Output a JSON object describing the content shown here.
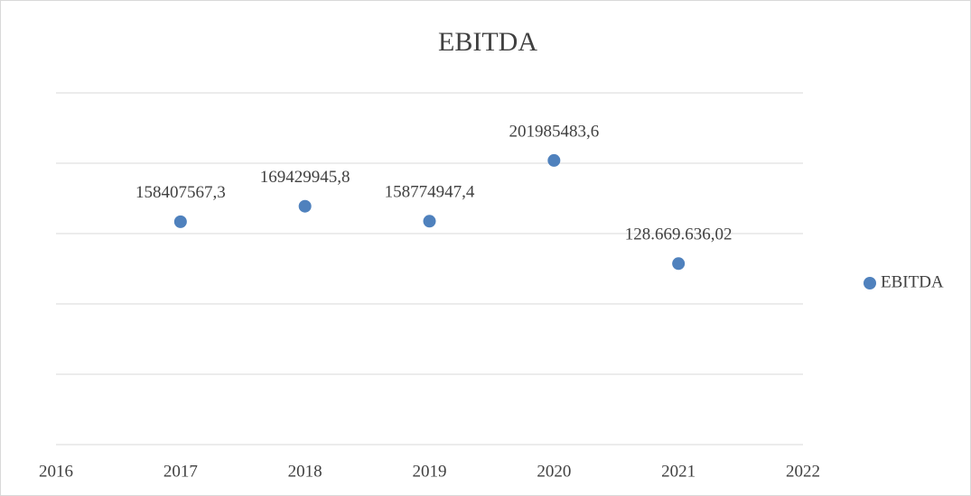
{
  "chart_data": {
    "type": "scatter",
    "title": "EBITDA",
    "series": [
      {
        "name": "EBITDA",
        "color": "#4f81bd",
        "x": [
          2017,
          2018,
          2019,
          2020,
          2021
        ],
        "values": [
          158407567.3,
          169429945.8,
          158774947.4,
          201985483.6,
          128669636.02
        ],
        "value_labels": [
          "158407567,3",
          "169429945,8",
          "158774947,4",
          "201985483,6",
          "128.669.636,02"
        ]
      }
    ],
    "xlim": [
      2016,
      2022
    ],
    "xticks": [
      2016,
      2017,
      2018,
      2019,
      2020,
      2021,
      2022
    ],
    "ylim": [
      0,
      250000000
    ],
    "yticks": [
      0,
      50000000,
      100000000,
      150000000,
      200000000,
      250000000
    ],
    "grid": true,
    "legend": "right"
  }
}
